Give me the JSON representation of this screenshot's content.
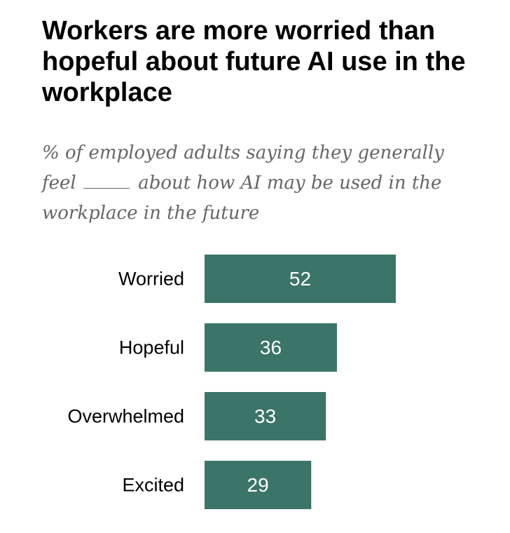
{
  "chart_data": {
    "type": "bar",
    "orientation": "horizontal",
    "title": "Workers are more worried than hopeful about future AI use in the workplace",
    "subtitle_before": "% of employed adults saying they generally feel",
    "subtitle_after": "about how AI may be used in the workplace in the future",
    "categories": [
      "Worried",
      "Hopeful",
      "Overwhelmed",
      "Excited"
    ],
    "values": [
      52,
      36,
      33,
      29
    ],
    "bar_color": "#3b7468",
    "xlim": [
      0,
      100
    ],
    "grid": false,
    "legend": "none"
  }
}
